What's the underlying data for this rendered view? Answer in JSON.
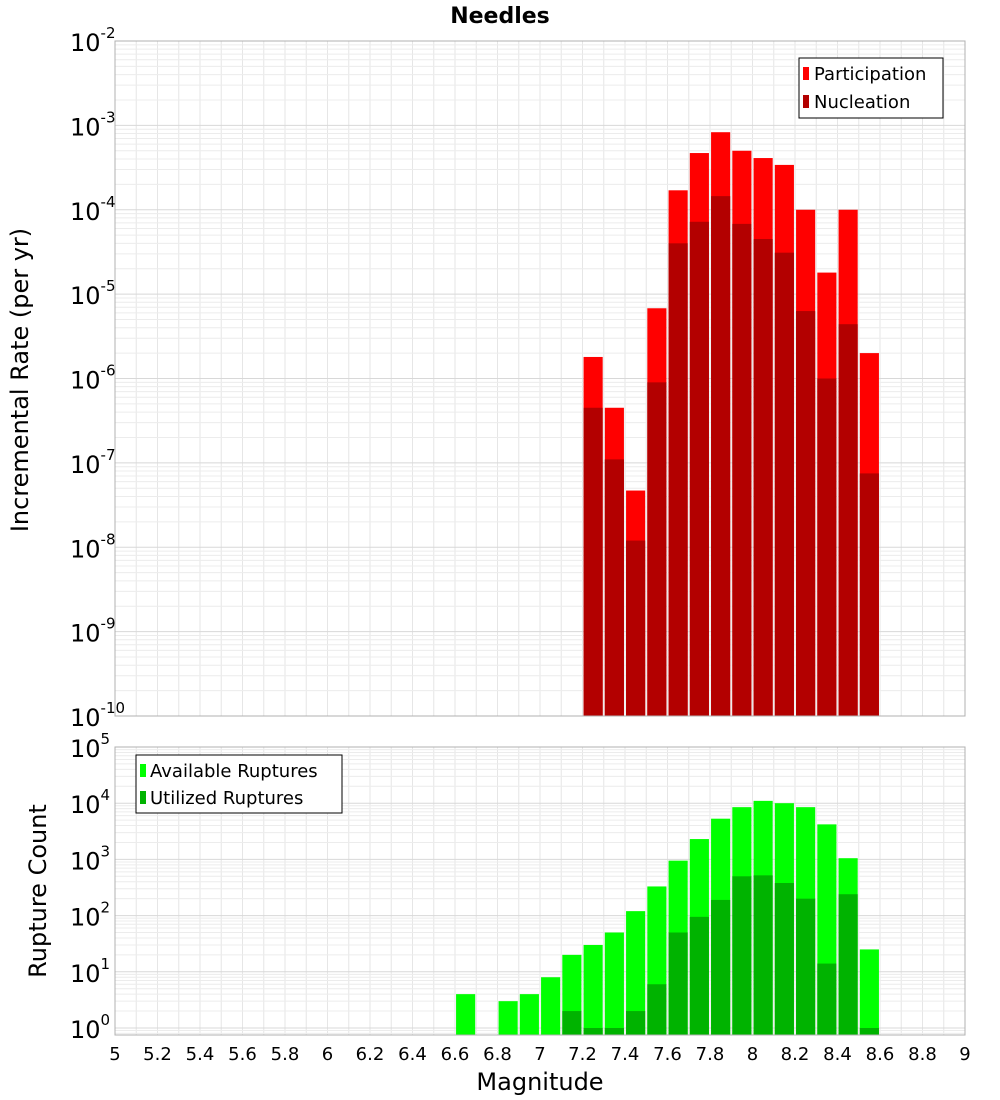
{
  "chart_data": [
    {
      "type": "bar",
      "title": "Needles",
      "xlabel": "",
      "ylabel": "Incremental Rate (per yr)",
      "yscale": "log",
      "ylim": [
        1e-10,
        0.01
      ],
      "xlim": [
        5,
        9
      ],
      "grid": true,
      "legend_position": "top-right",
      "x_tick_labels": [],
      "y_tick_labels": [
        {
          "base": "10",
          "exp": "-10",
          "value": 1e-10
        },
        {
          "base": "10",
          "exp": "-9",
          "value": 1e-09
        },
        {
          "base": "10",
          "exp": "-8",
          "value": 1e-08
        },
        {
          "base": "10",
          "exp": "-7",
          "value": 1e-07
        },
        {
          "base": "10",
          "exp": "-6",
          "value": 1e-06
        },
        {
          "base": "10",
          "exp": "-5",
          "value": 1e-05
        },
        {
          "base": "10",
          "exp": "-4",
          "value": 0.0001
        },
        {
          "base": "10",
          "exp": "-3",
          "value": 0.001
        },
        {
          "base": "10",
          "exp": "-2",
          "value": 0.01
        }
      ],
      "x": [
        7.25,
        7.35,
        7.45,
        7.55,
        7.65,
        7.75,
        7.85,
        7.95,
        8.05,
        8.15,
        8.25,
        8.35,
        8.45,
        8.55
      ],
      "series": [
        {
          "name": "Participation",
          "color": "#ff0000",
          "values": [
            1.8e-06,
            4.5e-07,
            4.7e-08,
            6.8e-06,
            0.00017,
            0.00047,
            0.00083,
            0.0005,
            0.00041,
            0.00034,
            0.0001,
            1.8e-05,
            0.0001,
            2e-06
          ]
        },
        {
          "name": "Nucleation",
          "color": "#b30000",
          "values": [
            4.5e-07,
            1.1e-07,
            1.2e-08,
            9e-07,
            4e-05,
            7.2e-05,
            0.000145,
            6.8e-05,
            4.5e-05,
            3.1e-05,
            6.3e-06,
            1e-06,
            4.4e-06,
            7.5e-08
          ]
        }
      ]
    },
    {
      "type": "bar",
      "title": "",
      "xlabel": "Magnitude",
      "ylabel": "Rupture Count",
      "yscale": "log",
      "ylim": [
        0.75,
        100000
      ],
      "xlim": [
        5,
        9
      ],
      "grid": true,
      "legend_position": "top-left",
      "x_tick_labels": [
        "5",
        "5.2",
        "5.4",
        "5.6",
        "5.8",
        "6",
        "6.2",
        "6.4",
        "6.6",
        "6.8",
        "7",
        "7.2",
        "7.4",
        "7.6",
        "7.8",
        "8",
        "8.2",
        "8.4",
        "8.6",
        "8.8",
        "9"
      ],
      "y_tick_labels": [
        {
          "base": "10",
          "exp": "0",
          "value": 1
        },
        {
          "base": "10",
          "exp": "1",
          "value": 10
        },
        {
          "base": "10",
          "exp": "2",
          "value": 100
        },
        {
          "base": "10",
          "exp": "3",
          "value": 1000
        },
        {
          "base": "10",
          "exp": "4",
          "value": 10000
        },
        {
          "base": "10",
          "exp": "5",
          "value": 100000
        }
      ],
      "x": [
        6.65,
        6.85,
        6.95,
        7.05,
        7.15,
        7.25,
        7.35,
        7.45,
        7.55,
        7.65,
        7.75,
        7.85,
        7.95,
        8.05,
        8.15,
        8.25,
        8.35,
        8.45,
        8.55
      ],
      "series": [
        {
          "name": "Available Ruptures",
          "color": "#00ff00",
          "values": [
            4,
            3,
            4,
            8,
            20,
            30,
            50,
            120,
            330,
            950,
            2300,
            5300,
            8500,
            11000,
            10000,
            8500,
            4200,
            1050,
            25
          ]
        },
        {
          "name": "Utilized Ruptures",
          "color": "#00b300",
          "values": [
            0,
            0,
            0,
            0,
            2,
            1,
            1,
            2,
            6,
            50,
            95,
            190,
            500,
            520,
            380,
            200,
            14,
            240,
            1
          ]
        }
      ]
    }
  ]
}
